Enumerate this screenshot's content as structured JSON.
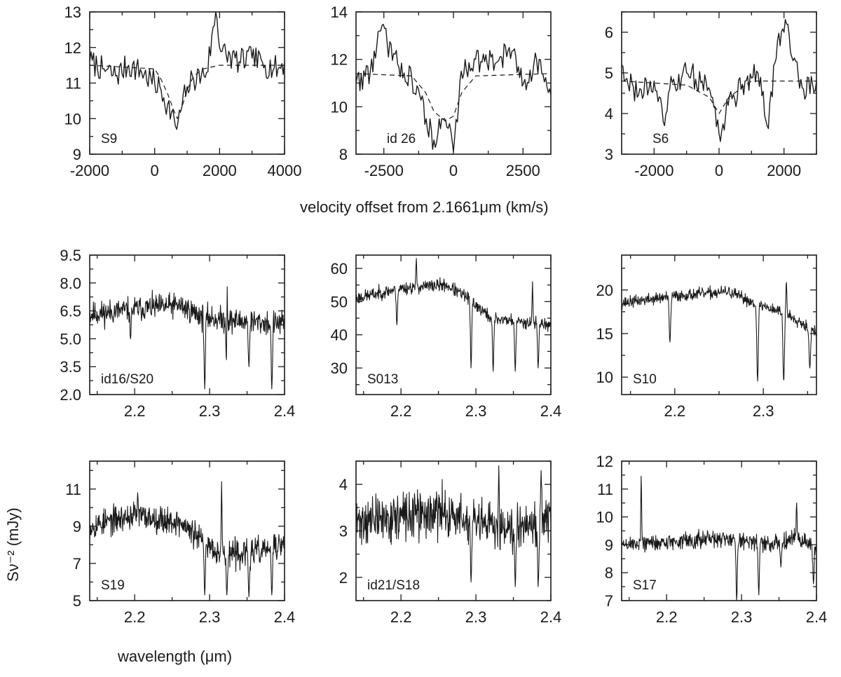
{
  "figure": {
    "velocity_xlabel": "velocity offset from 2.1661μm (km/s)",
    "wavelength_xlabel": "wavelength (μm)",
    "ylabel": "Sν⁻² (mJy)",
    "line_color": "#1a1a1a"
  },
  "chart_data": [
    {
      "type": "line",
      "label": "S9",
      "xlim": [
        -2000,
        4000
      ],
      "ylim": [
        9,
        13
      ],
      "xticks": [
        -2000,
        0,
        2000,
        4000
      ],
      "yticks": [
        9,
        10,
        11,
        12,
        13
      ],
      "xtick_labels": [
        "-2000",
        "0",
        "2000",
        "4000"
      ],
      "ytick_labels": [
        "9",
        "10",
        "11",
        "12",
        "13"
      ],
      "continuum": 11.5,
      "series": [
        {
          "style": "solid",
          "x": [
            -2000,
            -1600,
            -1200,
            -800,
            -400,
            0,
            200,
            400,
            600,
            700,
            800,
            1000,
            1200,
            1600,
            1900,
            2000,
            2200,
            2600,
            3000,
            3400,
            3800,
            4000
          ],
          "y": [
            11.6,
            11.4,
            11.2,
            11.5,
            11.3,
            11.0,
            10.8,
            10.4,
            10.0,
            9.7,
            10.2,
            10.9,
            11.1,
            11.3,
            13.0,
            12.0,
            11.8,
            11.6,
            11.7,
            11.5,
            11.4,
            11.6
          ]
        },
        {
          "style": "dashed",
          "x": [
            -2000,
            0,
            200,
            400,
            600,
            700,
            800,
            1000,
            1200,
            1500,
            2000,
            4000
          ],
          "y": [
            11.5,
            11.4,
            11.1,
            10.7,
            10.2,
            10.0,
            10.2,
            10.8,
            11.2,
            11.4,
            11.5,
            11.5
          ]
        }
      ]
    },
    {
      "type": "line",
      "label": "id 26",
      "xlim": [
        -3500,
        3500
      ],
      "ylim": [
        8,
        14
      ],
      "xticks": [
        -2500,
        0,
        2500
      ],
      "yticks": [
        8,
        10,
        12,
        14
      ],
      "xtick_labels": [
        "-2500",
        "0",
        "2500"
      ],
      "ytick_labels": [
        "8",
        "10",
        "12",
        "14"
      ],
      "continuum": 11.4,
      "series": [
        {
          "style": "solid",
          "x": [
            -3500,
            -3000,
            -2600,
            -2000,
            -1500,
            -1200,
            -1000,
            -700,
            -400,
            -100,
            0,
            300,
            800,
            1500,
            2000,
            2500,
            3000,
            3500
          ],
          "y": [
            11.0,
            11.5,
            13.2,
            11.8,
            11.2,
            10.5,
            9.5,
            8.6,
            9.5,
            9.0,
            8.1,
            11.5,
            12.0,
            11.8,
            12.5,
            11.0,
            12.0,
            10.5
          ]
        },
        {
          "style": "dashed",
          "x": [
            -3500,
            -1500,
            -1000,
            -700,
            -300,
            0,
            300,
            800,
            3500
          ],
          "y": [
            11.4,
            11.3,
            10.6,
            9.8,
            9.4,
            9.6,
            10.6,
            11.3,
            11.4
          ]
        }
      ]
    },
    {
      "type": "line",
      "label": "S6",
      "xlim": [
        -3000,
        3000
      ],
      "ylim": [
        3,
        6.5
      ],
      "xticks": [
        -2000,
        0,
        2000
      ],
      "yticks": [
        3,
        4,
        5,
        6
      ],
      "xtick_labels": [
        "-2000",
        "0",
        "2000"
      ],
      "ytick_labels": [
        "3",
        "4",
        "5",
        "6"
      ],
      "continuum": 4.8,
      "series": [
        {
          "style": "solid",
          "x": [
            -3000,
            -2500,
            -2000,
            -1700,
            -1500,
            -1000,
            -500,
            -200,
            0,
            300,
            800,
            1200,
            1500,
            1800,
            2000,
            2100,
            2300,
            2600,
            3000
          ],
          "y": [
            5.2,
            4.4,
            4.8,
            3.8,
            4.6,
            5.0,
            4.8,
            4.4,
            3.5,
            4.2,
            4.8,
            5.0,
            3.7,
            5.8,
            6.0,
            6.2,
            5.3,
            4.6,
            4.8
          ]
        },
        {
          "style": "dashed",
          "x": [
            -3000,
            -1000,
            -300,
            0,
            300,
            1000,
            3000
          ],
          "y": [
            4.8,
            4.7,
            4.4,
            4.0,
            4.4,
            4.8,
            4.8
          ]
        }
      ]
    },
    {
      "type": "line",
      "label": "id16/S20",
      "xlim": [
        2.14,
        2.4
      ],
      "ylim": [
        2.0,
        9.5
      ],
      "xticks": [
        2.2,
        2.3,
        2.4
      ],
      "yticks": [
        2.0,
        3.5,
        5.0,
        6.5,
        8.0,
        9.5
      ],
      "xtick_labels": [
        "2.2",
        "2.3",
        "2.4"
      ],
      "ytick_labels": [
        "2.0",
        "3.5",
        "5.0",
        "6.5",
        "8.0",
        "9.5"
      ],
      "series": [
        {
          "style": "solid",
          "noise": 0.55,
          "seed": 11,
          "base_x": [
            2.14,
            2.2,
            2.26,
            2.29,
            2.32,
            2.36,
            2.4
          ],
          "base_y": [
            6.3,
            6.6,
            6.8,
            6.2,
            6.0,
            5.9,
            5.8
          ],
          "dips": [
            [
              2.1945,
              5.0
            ],
            [
              2.2935,
              2.3
            ],
            [
              2.323,
              2.3
            ],
            [
              2.3525,
              3.5
            ],
            [
              2.383,
              2.3
            ]
          ],
          "spikes": [
            [
              2.3235,
              7.8
            ]
          ]
        }
      ]
    },
    {
      "type": "line",
      "label": "S013",
      "xlim": [
        2.14,
        2.4
      ],
      "ylim": [
        22,
        64
      ],
      "xticks": [
        2.2,
        2.3,
        2.4
      ],
      "yticks": [
        30,
        40,
        50,
        60
      ],
      "xtick_labels": [
        "2.2",
        "2.3",
        "2.4"
      ],
      "ytick_labels": [
        "30",
        "40",
        "50",
        "60"
      ],
      "series": [
        {
          "style": "solid",
          "noise": 1.6,
          "seed": 23,
          "base_x": [
            2.14,
            2.2,
            2.26,
            2.29,
            2.32,
            2.36,
            2.4
          ],
          "base_y": [
            51,
            54,
            55,
            51,
            45,
            44,
            43
          ],
          "dips": [
            [
              2.1945,
              43
            ],
            [
              2.2935,
              30
            ],
            [
              2.323,
              29
            ],
            [
              2.3525,
              29
            ],
            [
              2.383,
              30
            ]
          ],
          "spikes": [
            [
              2.2205,
              63
            ],
            [
              2.3755,
              56
            ]
          ]
        }
      ]
    },
    {
      "type": "line",
      "label": "S10",
      "xlim": [
        2.14,
        2.36
      ],
      "ylim": [
        8,
        24
      ],
      "xticks": [
        2.2,
        2.3
      ],
      "yticks": [
        10,
        15,
        20
      ],
      "xtick_labels": [
        "2.2",
        "2.3"
      ],
      "ytick_labels": [
        "10",
        "15",
        "20"
      ],
      "series": [
        {
          "style": "solid",
          "noise": 0.55,
          "seed": 37,
          "base_x": [
            2.14,
            2.2,
            2.26,
            2.29,
            2.32,
            2.34,
            2.36
          ],
          "base_y": [
            18.5,
            19.3,
            19.8,
            18.5,
            17.5,
            16.5,
            15.0
          ],
          "dips": [
            [
              2.1945,
              14
            ],
            [
              2.2935,
              9.5
            ],
            [
              2.323,
              9.5
            ],
            [
              2.3525,
              11
            ]
          ],
          "spikes": [
            [
              2.326,
              21
            ]
          ]
        }
      ]
    },
    {
      "type": "line",
      "label": "S19",
      "xlim": [
        2.14,
        2.4
      ],
      "ylim": [
        5,
        12.5
      ],
      "xticks": [
        2.2,
        2.3,
        2.4
      ],
      "yticks": [
        5,
        7,
        9,
        11
      ],
      "xtick_labels": [
        "2.2",
        "2.3",
        "2.4"
      ],
      "ytick_labels": [
        "5",
        "7",
        "9",
        "11"
      ],
      "series": [
        {
          "style": "solid",
          "noise": 0.6,
          "seed": 53,
          "base_x": [
            2.14,
            2.2,
            2.26,
            2.29,
            2.32,
            2.36,
            2.4
          ],
          "base_y": [
            9.0,
            9.6,
            9.2,
            8.2,
            7.5,
            7.6,
            8.0
          ],
          "dips": [
            [
              2.2935,
              5.3
            ],
            [
              2.323,
              5.3
            ],
            [
              2.3525,
              5.2
            ],
            [
              2.383,
              5.3
            ]
          ],
          "spikes": [
            [
              2.316,
              11.4
            ],
            [
              2.204,
              10.8
            ]
          ]
        }
      ]
    },
    {
      "type": "line",
      "label": "id21/S18",
      "xlim": [
        2.14,
        2.4
      ],
      "ylim": [
        1.5,
        4.5
      ],
      "xticks": [
        2.2,
        2.3,
        2.4
      ],
      "yticks": [
        2,
        3,
        4
      ],
      "xtick_labels": [
        "2.2",
        "2.3",
        "2.4"
      ],
      "ytick_labels": [
        "2",
        "3",
        "4"
      ],
      "series": [
        {
          "style": "solid",
          "noise": 0.42,
          "seed": 71,
          "base_x": [
            2.14,
            2.2,
            2.26,
            2.3,
            2.34,
            2.4
          ],
          "base_y": [
            3.2,
            3.3,
            3.4,
            3.1,
            3.1,
            3.3
          ],
          "dips": [
            [
              2.2935,
              1.9
            ],
            [
              2.3525,
              1.8
            ],
            [
              2.383,
              1.8
            ]
          ],
          "spikes": [
            [
              2.3305,
              4.4
            ],
            [
              2.387,
              4.3
            ]
          ]
        }
      ]
    },
    {
      "type": "line",
      "label": "S17",
      "xlim": [
        2.14,
        2.4
      ],
      "ylim": [
        7,
        12
      ],
      "xticks": [
        2.2,
        2.3,
        2.4
      ],
      "yticks": [
        7,
        8,
        9,
        10,
        11,
        12
      ],
      "xtick_labels": [
        "2.2",
        "2.3",
        "2.4"
      ],
      "ytick_labels": [
        "7",
        "8",
        "9",
        "10",
        "11",
        "12"
      ],
      "series": [
        {
          "style": "solid",
          "noise": 0.25,
          "seed": 89,
          "base_x": [
            2.14,
            2.2,
            2.26,
            2.3,
            2.34,
            2.37,
            2.4
          ],
          "base_y": [
            9.0,
            9.1,
            9.2,
            9.2,
            9.0,
            9.3,
            8.9
          ],
          "dips": [
            [
              2.2935,
              7.0
            ],
            [
              2.323,
              7.2
            ],
            [
              2.3525,
              8.2
            ],
            [
              2.396,
              7.6
            ]
          ],
          "spikes": [
            [
              2.1661,
              11.5
            ],
            [
              2.3735,
              10.5
            ]
          ]
        }
      ]
    }
  ]
}
